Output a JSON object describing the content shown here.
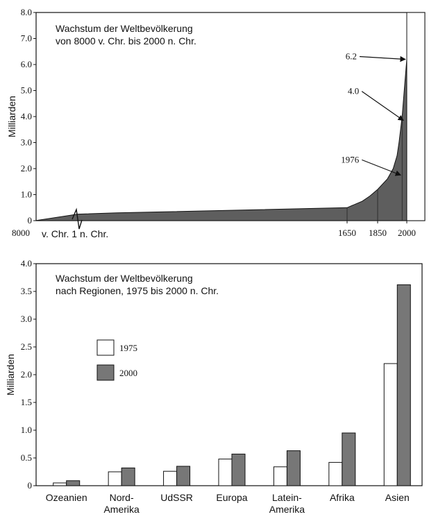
{
  "chart_data": [
    {
      "type": "area",
      "title": "Wachstum der Weltbevölkerung",
      "subtitle": "von 8000 v. Chr. bis 2000 n. Chr.",
      "ylabel": "Milliarden",
      "ylim": [
        0,
        8
      ],
      "yticks": [
        "0",
        "1.0",
        "2.0",
        "3.0",
        "4.0",
        "5.0",
        "6.0",
        "7.0",
        "8.0"
      ],
      "xtick_labels": {
        "start": "8000",
        "bc_ad": "v. Chr. 1 n. Chr.",
        "t1650": "1650",
        "t1850": "1850",
        "t2000": "2000"
      },
      "era_break": {
        "bc_years": 8000,
        "ad_years": 2000
      },
      "series": [
        {
          "x": [
            -8000,
            0,
            1000,
            1650,
            1750,
            1800,
            1850,
            1900,
            1930,
            1950,
            1960,
            1976,
            1990,
            2000
          ],
          "values": [
            0.005,
            0.25,
            0.3,
            0.5,
            0.75,
            0.95,
            1.2,
            1.6,
            2.0,
            2.5,
            3.0,
            4.0,
            5.3,
            6.2
          ]
        }
      ],
      "annotations": [
        {
          "text": "6.2",
          "x": 2000,
          "y": 6.2
        },
        {
          "text": "4.0",
          "x": 1990,
          "y": 3.85
        },
        {
          "text": "1976",
          "x": 1976,
          "y": 1.75
        }
      ],
      "colors": {
        "fill": "#5e5e5e",
        "line": "#111111"
      }
    },
    {
      "type": "bar",
      "title": "Wachstum der Weltbevölkerung",
      "subtitle": "nach Regionen, 1975 bis 2000 n. Chr.",
      "ylabel": "Milliarden",
      "ylim": [
        0,
        4
      ],
      "yticks": [
        "0",
        "0.5",
        "1.0",
        "1.5",
        "2.0",
        "2.5",
        "3.0",
        "3.5",
        "4.0"
      ],
      "categories": [
        [
          "Ozeanien"
        ],
        [
          "Nord-",
          "Amerika"
        ],
        [
          "UdSSR"
        ],
        [
          "Europa"
        ],
        [
          "Latein-",
          "Amerika"
        ],
        [
          "Afrika"
        ],
        [
          "Asien"
        ]
      ],
      "series": [
        {
          "name": "1975",
          "values": [
            0.05,
            0.25,
            0.26,
            0.48,
            0.34,
            0.42,
            2.2
          ],
          "color": "#ffffff"
        },
        {
          "name": "2000",
          "values": [
            0.09,
            0.32,
            0.35,
            0.57,
            0.63,
            0.95,
            3.62
          ],
          "color": "#777777"
        }
      ],
      "legend": "top-left"
    }
  ]
}
